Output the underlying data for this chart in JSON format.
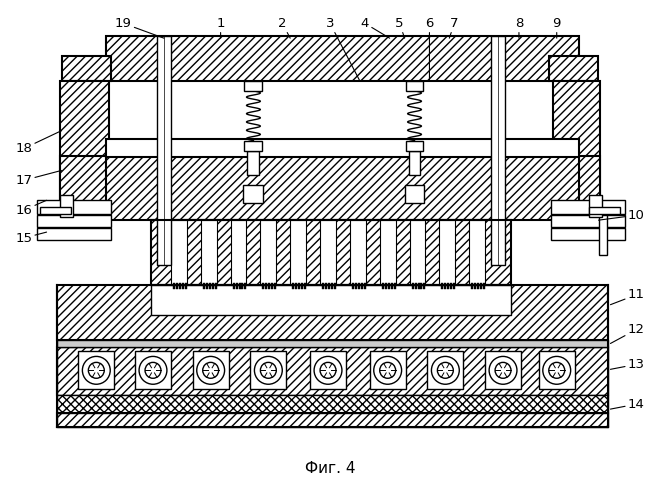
{
  "title": "Фиг. 4",
  "background_color": "#ffffff",
  "fig_width": 6.6,
  "fig_height": 5.0,
  "dpi": 100
}
